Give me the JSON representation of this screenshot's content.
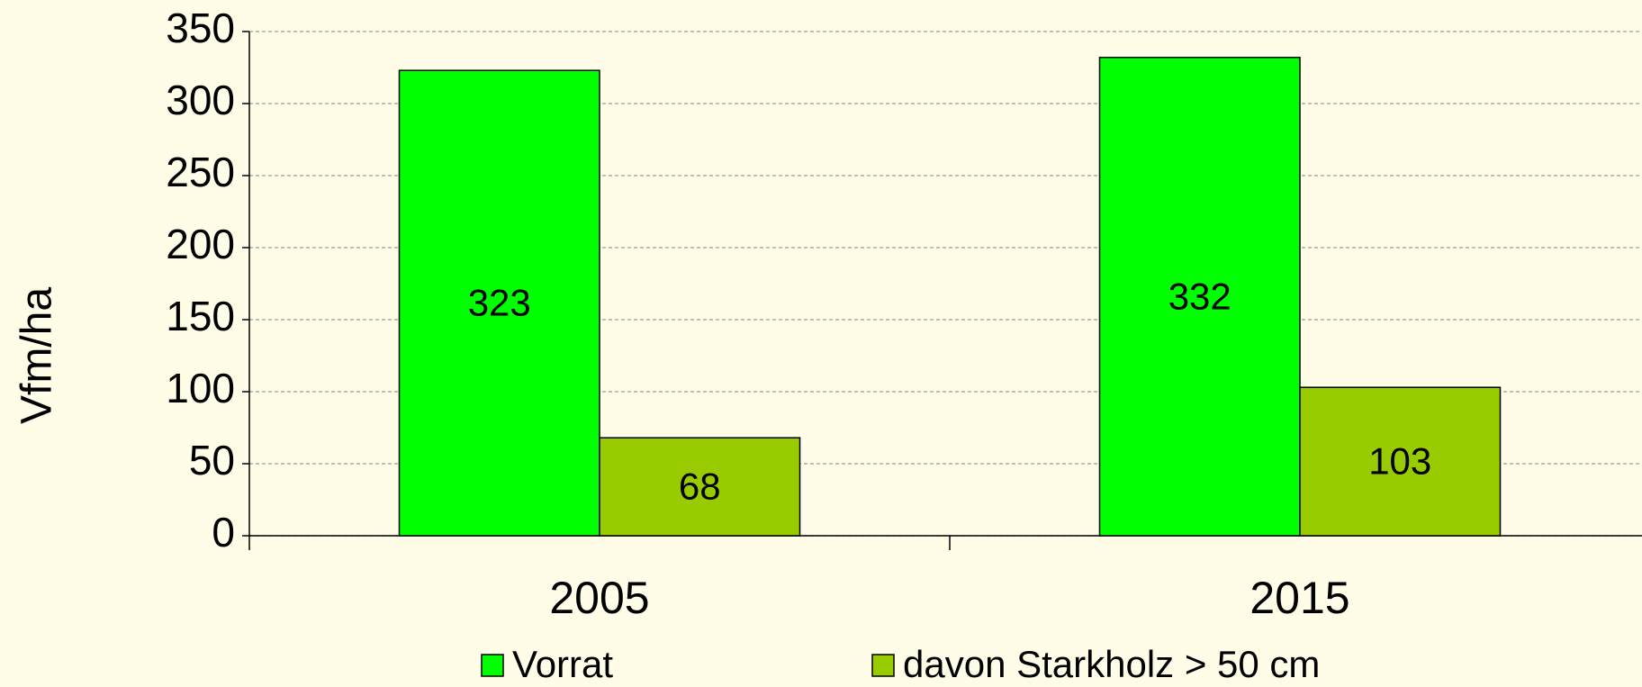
{
  "chart_data": {
    "type": "bar",
    "y_label": "Vfm/ha",
    "categories": [
      "2005",
      "2015"
    ],
    "series": [
      {
        "name": "Vorrat",
        "color": "#00ff00",
        "values": [
          323,
          332
        ]
      },
      {
        "name": "davon Starkholz > 50 cm",
        "color": "#99cc00",
        "values": [
          68,
          103
        ]
      }
    ],
    "ylim": [
      0,
      350
    ],
    "yticks": [
      0,
      50,
      100,
      150,
      200,
      250,
      300,
      350
    ],
    "grid": true,
    "legend": "bottom"
  }
}
